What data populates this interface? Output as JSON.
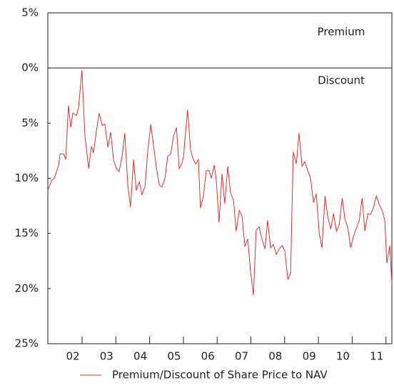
{
  "chart_data": {
    "type": "line",
    "annotations": [
      "Premium",
      "Discount"
    ],
    "xlim": [
      2001.26,
      2011.45
    ],
    "xticks": [
      {
        "value": 2002,
        "label": "02"
      },
      {
        "value": 2003,
        "label": "03"
      },
      {
        "value": 2004,
        "label": "04"
      },
      {
        "value": 2005,
        "label": "05"
      },
      {
        "value": 2006,
        "label": "06"
      },
      {
        "value": 2007,
        "label": "07"
      },
      {
        "value": 2008,
        "label": "08"
      },
      {
        "value": 2009,
        "label": "09"
      },
      {
        "value": 2010,
        "label": "10"
      },
      {
        "value": 2011,
        "label": "11"
      }
    ],
    "ylim": [
      -25,
      5
    ],
    "yticks": [
      {
        "value": 5,
        "label": "5%"
      },
      {
        "value": 0,
        "label": "0%"
      },
      {
        "value": -5,
        "label": "5%"
      },
      {
        "value": -10,
        "label": "10%"
      },
      {
        "value": -15,
        "label": "15%"
      },
      {
        "value": -20,
        "label": "20%"
      },
      {
        "value": -25,
        "label": "25%"
      }
    ],
    "series": [
      {
        "name": "Premium/Discount of Share Price to NAV",
        "color": "#e03030",
        "x": [
          2001.26,
          2001.37,
          2001.45,
          2001.58,
          2001.62,
          2001.73,
          2001.79,
          2001.87,
          2001.94,
          2002.0,
          2002.11,
          2002.17,
          2002.27,
          2002.36,
          2002.47,
          2002.55,
          2002.61,
          2002.7,
          2002.78,
          2002.87,
          2002.95,
          2003.04,
          2003.12,
          2003.21,
          2003.29,
          2003.37,
          2003.46,
          2003.54,
          2003.63,
          2003.71,
          2003.8,
          2003.88,
          2003.97,
          2004.05,
          2004.14,
          2004.22,
          2004.31,
          2004.39,
          2004.47,
          2004.56,
          2004.64,
          2004.73,
          2004.81,
          2004.9,
          2004.98,
          2005.07,
          2005.15,
          2005.23,
          2005.28,
          2005.34,
          2005.4,
          2005.49,
          2005.57,
          2005.64,
          2005.72,
          2005.78,
          2005.87,
          2005.95,
          2006.04,
          2006.1,
          2006.19,
          2006.25,
          2006.33,
          2006.42,
          2006.5,
          2006.59,
          2006.67,
          2006.76,
          2006.84,
          2006.93,
          2007.01,
          2007.1,
          2007.18,
          2007.27,
          2007.35,
          2007.43,
          2007.52,
          2007.6,
          2007.69,
          2007.77,
          2007.86,
          2007.94,
          2008.03,
          2008.11,
          2008.2,
          2008.28,
          2008.37,
          2008.45,
          2008.53,
          2008.62,
          2008.7,
          2008.79,
          2008.87,
          2008.96,
          2009.04,
          2009.13,
          2009.21,
          2009.3,
          2009.38,
          2009.47,
          2009.55,
          2009.64,
          2009.72,
          2009.81,
          2009.89,
          2009.98,
          2010.06,
          2010.14,
          2010.23,
          2010.31,
          2010.4,
          2010.48,
          2010.57,
          2010.65,
          2010.74,
          2010.82,
          2010.91,
          2010.99,
          2011.08,
          2011.16,
          2011.24,
          2011.3,
          2011.39,
          2011.45
        ],
        "values": [
          -11.1,
          -10.2,
          -10.0,
          -8.8,
          -7.8,
          -7.8,
          -8.3,
          -3.4,
          -5.4,
          -4.1,
          -4.3,
          -3.6,
          -0.2,
          -6.2,
          -9.1,
          -7.1,
          -7.7,
          -5.7,
          -4.1,
          -5.2,
          -5.1,
          -7.2,
          -5.8,
          -8.4,
          -9.1,
          -9.4,
          -8.0,
          -5.9,
          -10.7,
          -12.6,
          -8.3,
          -11.1,
          -10.3,
          -11.5,
          -10.7,
          -7.5,
          -5.1,
          -7.0,
          -8.9,
          -10.6,
          -10.8,
          -10.0,
          -8.0,
          -7.8,
          -6.2,
          -5.4,
          -9.1,
          -8.7,
          -8.0,
          -5.8,
          -3.8,
          -7.5,
          -8.3,
          -8.7,
          -8.3,
          -12.7,
          -11.6,
          -9.3,
          -9.3,
          -10.0,
          -8.8,
          -10.2,
          -14.0,
          -9.6,
          -12.3,
          -8.9,
          -11.3,
          -12.0,
          -14.8,
          -12.9,
          -13.4,
          -16.2,
          -15.5,
          -18.6,
          -20.6,
          -14.7,
          -14.4,
          -15.5,
          -16.4,
          -13.8,
          -16.3,
          -16.0,
          -16.9,
          -16.4,
          -16.1,
          -16.6,
          -19.2,
          -18.6,
          -7.6,
          -8.7,
          -5.9,
          -8.9,
          -8.5,
          -9.3,
          -10.0,
          -12.2,
          -11.4,
          -15.0,
          -16.3,
          -11.6,
          -13.5,
          -14.6,
          -13.2,
          -14.8,
          -14.2,
          -11.8,
          -13.7,
          -14.4,
          -16.3,
          -15.3,
          -14.5,
          -13.9,
          -11.8,
          -14.8,
          -13.2,
          -13.3,
          -12.6,
          -11.6,
          -12.4,
          -12.9,
          -13.8,
          -17.7,
          -16.1,
          -19.6
        ]
      }
    ]
  }
}
